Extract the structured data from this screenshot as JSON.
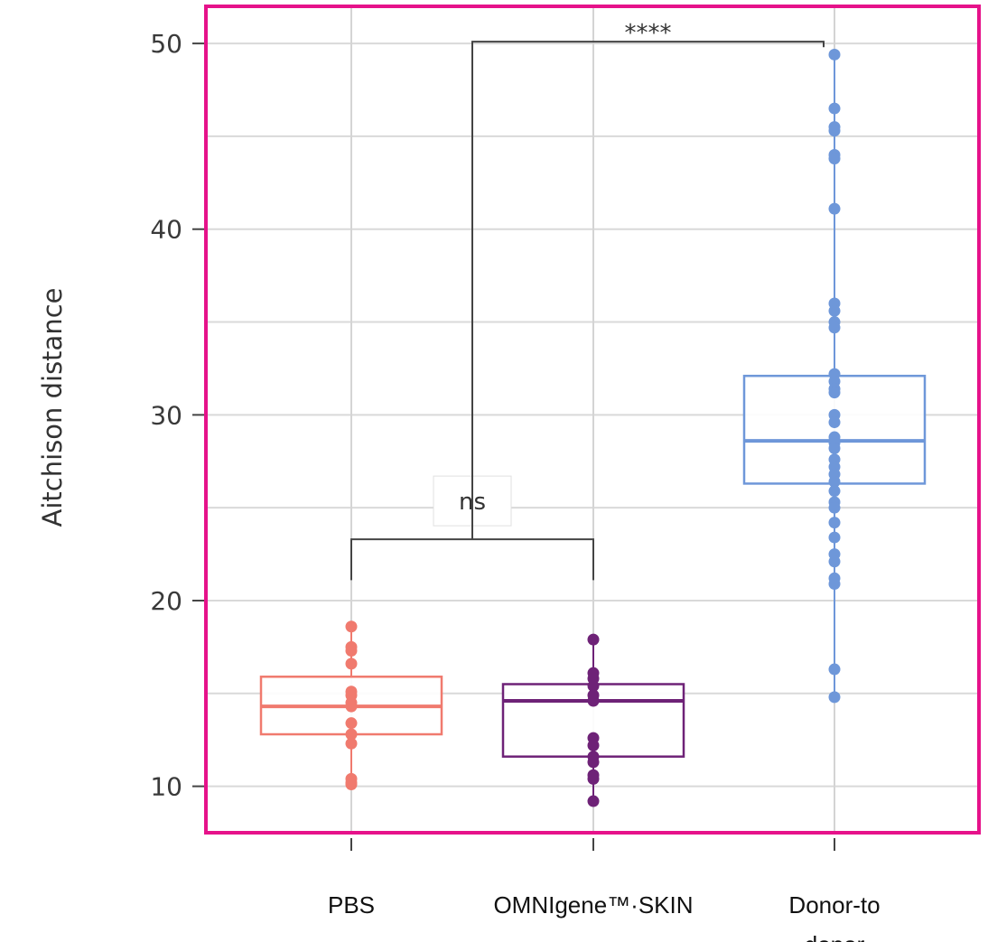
{
  "chart_data": {
    "type": "box",
    "ylabel": "Aitchison distance",
    "ylim": [
      7.5,
      52
    ],
    "yticks": [
      10,
      20,
      30,
      40,
      50
    ],
    "grid": true,
    "frame_color": "#e6128a",
    "categories": [
      {
        "lines": [
          "PBS"
        ]
      },
      {
        "lines": [
          "OMNIgene™·SKIN"
        ]
      },
      {
        "lines": [
          "Donor-to",
          "donor"
        ]
      }
    ],
    "series": [
      {
        "color": "#f07a6e",
        "box": {
          "q1": 12.8,
          "median": 14.3,
          "q3": 15.9,
          "whisker_low": 10.1,
          "whisker_high": 18.6
        },
        "points": [
          18.6,
          17.5,
          17.3,
          16.6,
          15.1,
          14.9,
          14.5,
          14.3,
          13.4,
          12.8,
          12.3,
          10.4,
          10.2,
          10.1
        ]
      },
      {
        "color": "#6e2277",
        "box": {
          "q1": 11.6,
          "median": 14.6,
          "q3": 15.5,
          "whisker_low": 9.2,
          "whisker_high": 17.9
        },
        "points": [
          17.9,
          16.1,
          15.8,
          15.4,
          14.9,
          14.6,
          12.6,
          12.2,
          11.6,
          11.3,
          10.6,
          10.4,
          9.2
        ]
      },
      {
        "color": "#6e97d9",
        "box": {
          "q1": 26.3,
          "median": 28.6,
          "q3": 32.1,
          "whisker_low": 14.8,
          "whisker_high": 49.4
        },
        "points": [
          49.4,
          46.5,
          45.5,
          45.3,
          44.0,
          43.8,
          41.1,
          36.0,
          35.6,
          35.0,
          34.7,
          32.2,
          31.8,
          31.4,
          31.2,
          30.0,
          29.6,
          28.8,
          28.5,
          28.2,
          27.6,
          27.2,
          26.8,
          26.4,
          25.9,
          25.3,
          25.0,
          24.2,
          23.4,
          22.5,
          22.1,
          21.2,
          20.9,
          16.3,
          14.8
        ]
      }
    ],
    "annotations": [
      {
        "label": "ns",
        "x1": 0,
        "x2": 1,
        "y": 23.3,
        "drop_left": 21.1,
        "drop_right": 21.1
      },
      {
        "label": "****",
        "between": "ns-bracket-to-2",
        "y": 50.1,
        "drop_right": 49.8
      }
    ]
  }
}
